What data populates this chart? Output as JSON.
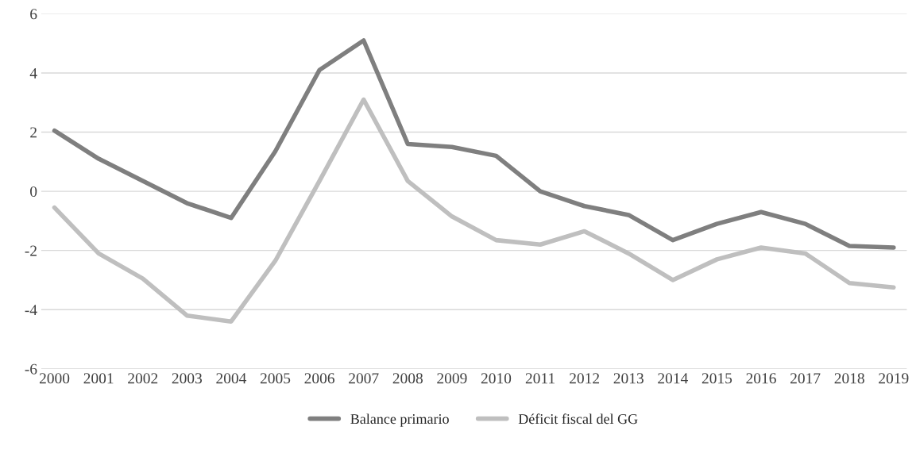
{
  "chart_data": {
    "type": "line",
    "categories": [
      "2000",
      "2001",
      "2002",
      "2003",
      "2004",
      "2005",
      "2006",
      "2007",
      "2008",
      "2009",
      "2010",
      "2011",
      "2012",
      "2013",
      "2014",
      "2015",
      "2016",
      "2017",
      "2018",
      "2019"
    ],
    "series": [
      {
        "name": "Balance primario",
        "color": "#7f7f7f",
        "values": [
          2.05,
          1.1,
          0.35,
          -0.4,
          -0.9,
          1.35,
          4.1,
          5.1,
          1.6,
          1.5,
          1.2,
          0,
          -0.5,
          -0.8,
          -1.65,
          -1.1,
          -0.7,
          -1.1,
          -1.85,
          -1.9
        ]
      },
      {
        "name": "Déficit fiscal del GG",
        "color": "#bfbfbf",
        "values": [
          -0.55,
          -2.1,
          -2.95,
          -4.2,
          -4.4,
          -2.35,
          0.35,
          3.1,
          0.35,
          -0.85,
          -1.65,
          -1.8,
          -1.35,
          -2.1,
          -3.0,
          -2.3,
          -1.9,
          -2.1,
          -3.1,
          -3.25
        ]
      }
    ],
    "ylim": [
      -6,
      6
    ],
    "yticks": [
      -6,
      -4,
      -2,
      0,
      2,
      4,
      6
    ],
    "grid": "y",
    "legend": "bottom",
    "marker": "none",
    "line_style": "solid"
  }
}
